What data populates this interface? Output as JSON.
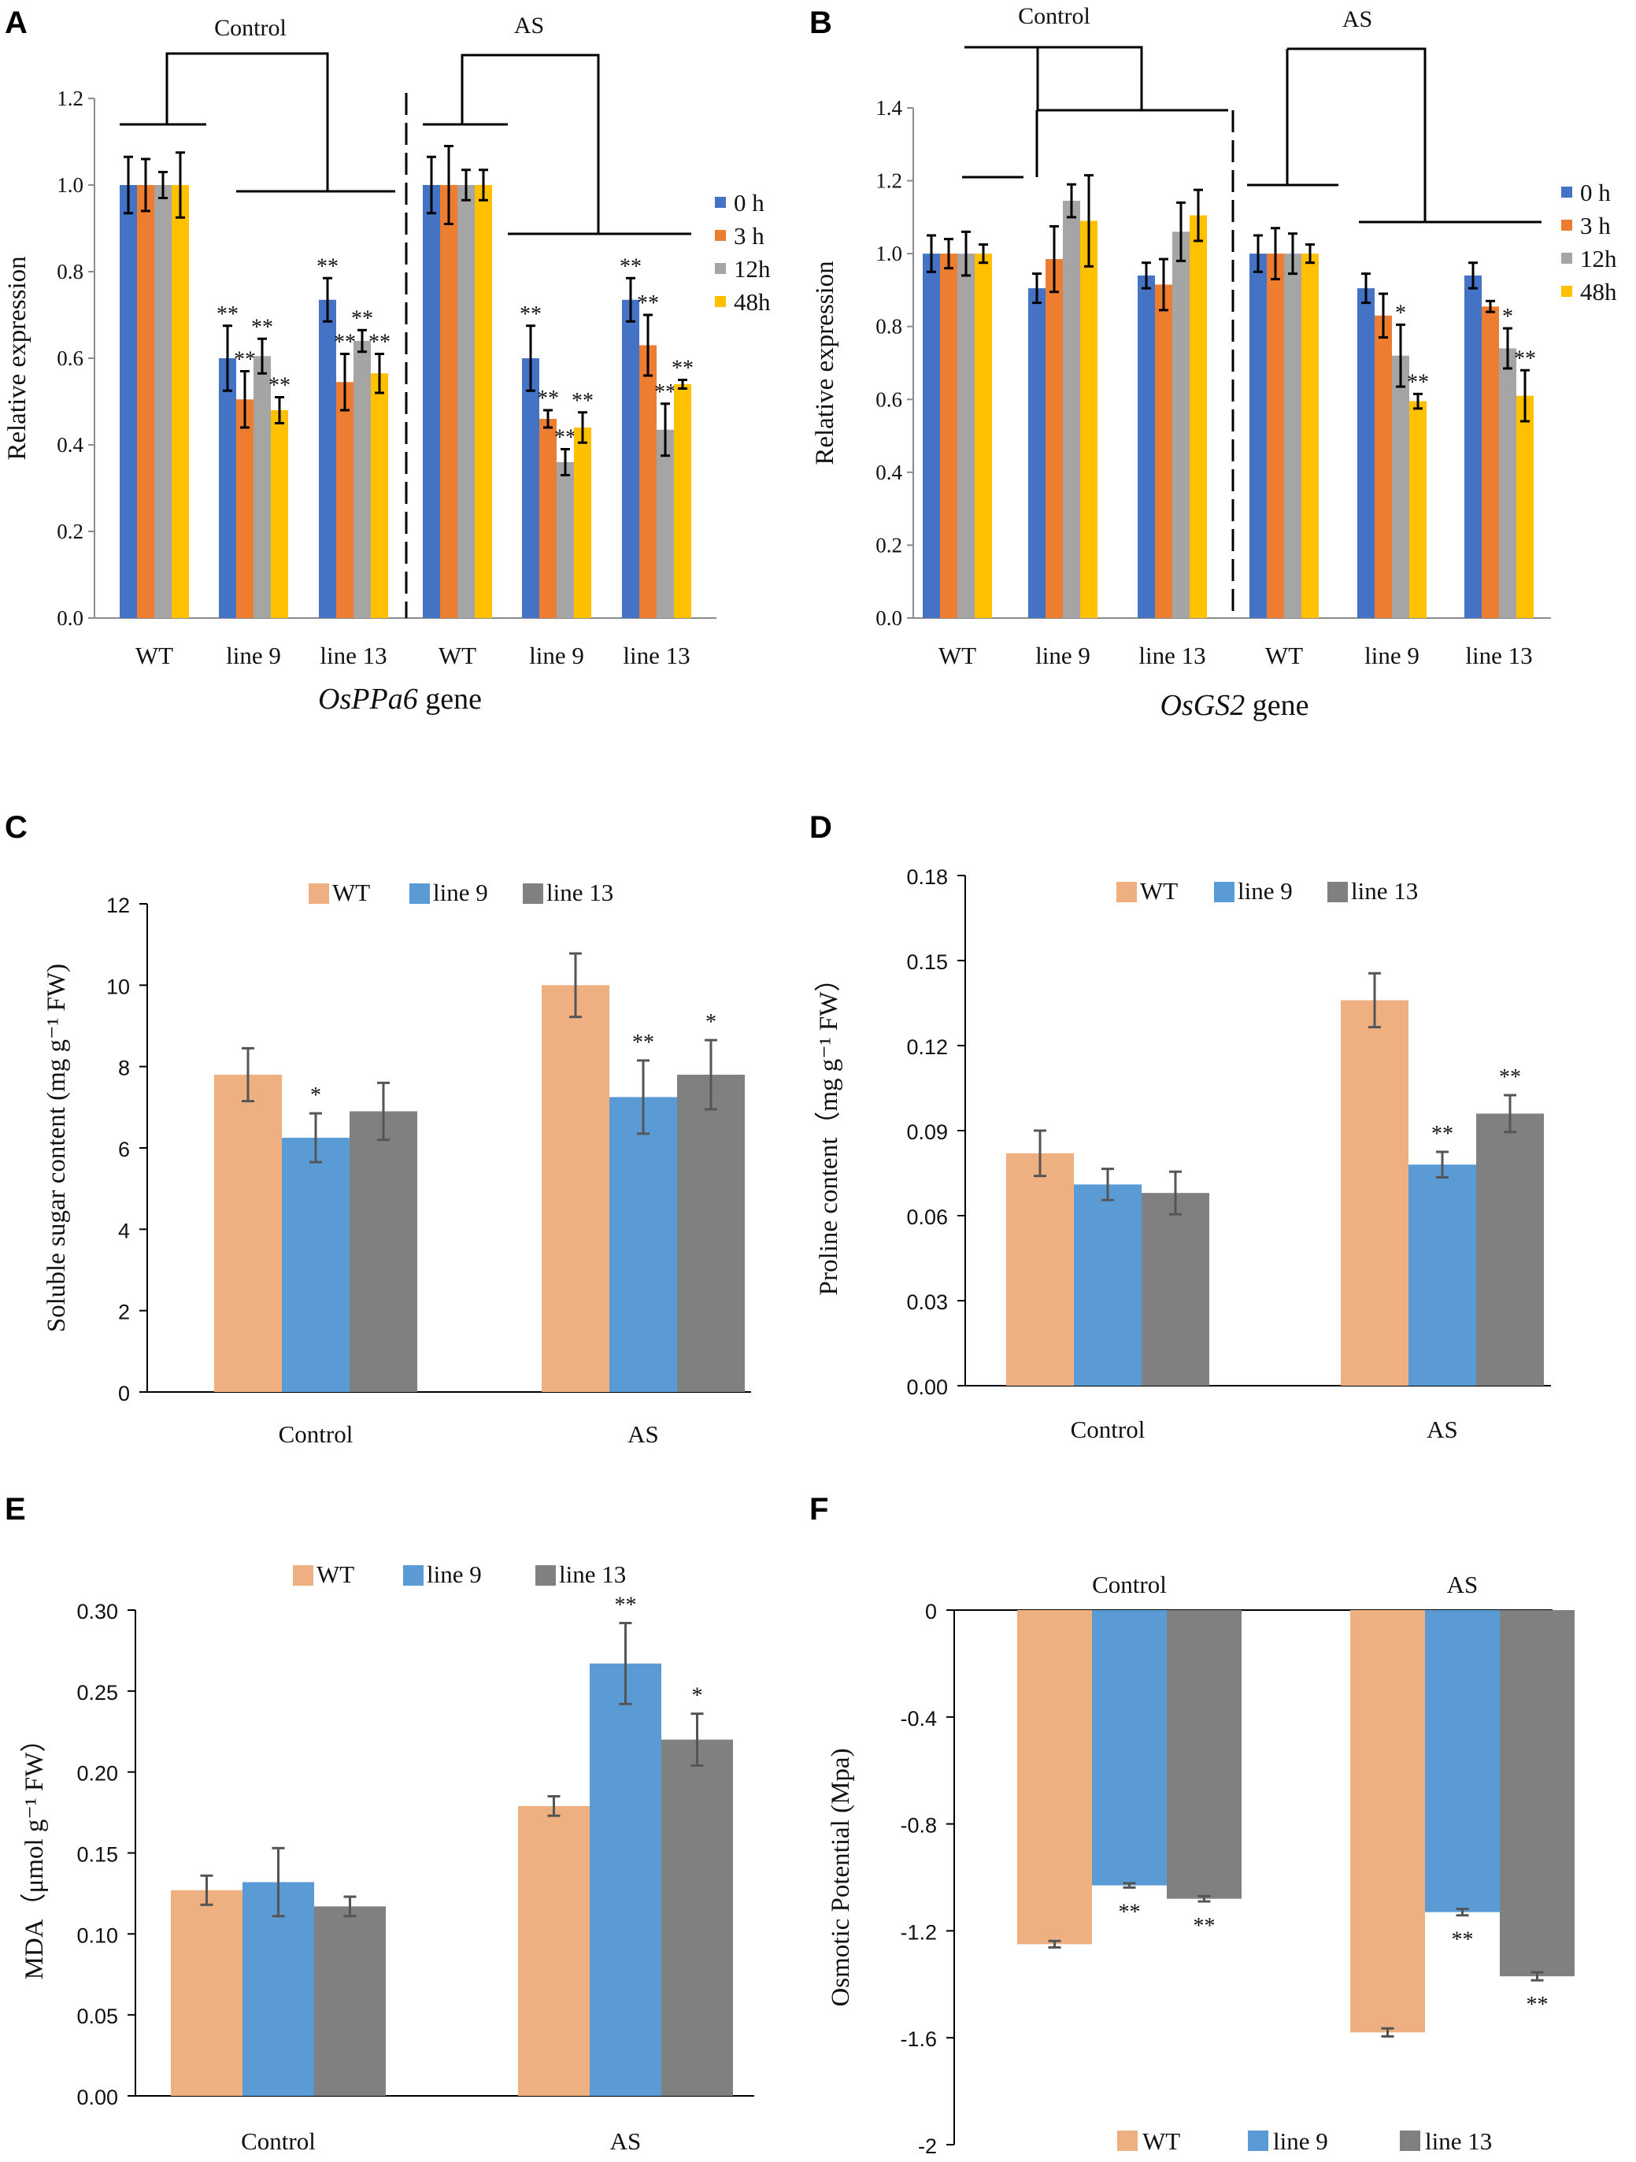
{
  "chart_data": [
    {
      "panel": "A",
      "type": "bar",
      "title": "",
      "gene_label": {
        "italic": "OsPPa6",
        "suffix": " gene"
      },
      "ylabel": "Relative expression",
      "xlabel": "",
      "ylim": [
        0,
        1.2
      ],
      "yticks": [
        0,
        0.2,
        0.4,
        0.6,
        0.8,
        1.0,
        1.2
      ],
      "ytick_labels": [
        "0.0",
        "0.2",
        "0.4",
        "0.6",
        "0.8",
        "1.0",
        "1.2"
      ],
      "categories": [
        "WT",
        "line 9",
        "line 13",
        "WT",
        "line 9",
        "line 13"
      ],
      "group_labels": [
        "Control",
        "AS"
      ],
      "legend": {
        "position": "right",
        "entries": [
          "0 h",
          "3 h",
          "12h",
          "48h"
        ]
      },
      "series": [
        {
          "name": "0 h",
          "color": "#4472c4",
          "values": [
            1.0,
            0.6,
            0.735,
            1.0,
            0.6,
            0.735
          ],
          "errors": [
            0.065,
            0.075,
            0.05,
            0.065,
            0.075,
            0.05
          ],
          "sig": [
            "",
            "**",
            "**",
            "",
            "**",
            "**"
          ]
        },
        {
          "name": "3 h",
          "color": "#ed7d31",
          "values": [
            1.0,
            0.505,
            0.545,
            1.0,
            0.46,
            0.63
          ],
          "errors": [
            0.06,
            0.065,
            0.065,
            0.09,
            0.02,
            0.07
          ],
          "sig": [
            "",
            "**",
            "**",
            "",
            "**",
            "**"
          ]
        },
        {
          "name": "12h",
          "color": "#a5a5a5",
          "values": [
            1.0,
            0.605,
            0.64,
            1.0,
            0.36,
            0.435
          ],
          "errors": [
            0.03,
            0.04,
            0.025,
            0.035,
            0.03,
            0.06
          ],
          "sig": [
            "",
            "**",
            "**",
            "",
            "**",
            "**"
          ]
        },
        {
          "name": "48h",
          "color": "#ffc000",
          "values": [
            1.0,
            0.48,
            0.565,
            1.0,
            0.44,
            0.54
          ],
          "errors": [
            0.075,
            0.03,
            0.045,
            0.035,
            0.035,
            0.01
          ],
          "sig": [
            "",
            "**",
            "**",
            "",
            "**",
            "**"
          ]
        }
      ]
    },
    {
      "panel": "B",
      "type": "bar",
      "title": "",
      "gene_label": {
        "italic": "OsGS2",
        "suffix": " gene"
      },
      "ylabel": "Relative expression",
      "xlabel": "",
      "ylim": [
        0,
        1.4
      ],
      "yticks": [
        0,
        0.2,
        0.4,
        0.6,
        0.8,
        1.0,
        1.2,
        1.4
      ],
      "ytick_labels": [
        "0.0",
        "0.2",
        "0.4",
        "0.6",
        "0.8",
        "1.0",
        "1.2",
        "1.4"
      ],
      "categories": [
        "WT",
        "line 9",
        "line 13",
        "WT",
        "line 9",
        "line 13"
      ],
      "group_labels": [
        "Control",
        "AS"
      ],
      "legend": {
        "position": "right",
        "entries": [
          "0 h",
          "3 h",
          "12h",
          "48h"
        ]
      },
      "series": [
        {
          "name": "0 h",
          "color": "#4472c4",
          "values": [
            1.0,
            0.905,
            0.94,
            1.0,
            0.905,
            0.94
          ],
          "errors": [
            0.05,
            0.04,
            0.035,
            0.05,
            0.04,
            0.035
          ],
          "sig": [
            "",
            "",
            "",
            "",
            "",
            ""
          ]
        },
        {
          "name": "3 h",
          "color": "#ed7d31",
          "values": [
            1.0,
            0.985,
            0.915,
            1.0,
            0.83,
            0.855
          ],
          "errors": [
            0.04,
            0.09,
            0.07,
            0.07,
            0.06,
            0.015
          ],
          "sig": [
            "",
            "",
            "",
            "",
            "",
            ""
          ]
        },
        {
          "name": "12h",
          "color": "#a5a5a5",
          "values": [
            1.0,
            1.145,
            1.06,
            1.0,
            0.72,
            0.74
          ],
          "errors": [
            0.06,
            0.045,
            0.08,
            0.055,
            0.085,
            0.055
          ],
          "sig": [
            "",
            "",
            "",
            "",
            "*",
            "*"
          ]
        },
        {
          "name": "48h",
          "color": "#ffc000",
          "values": [
            1.0,
            1.09,
            1.105,
            1.0,
            0.595,
            0.61
          ],
          "errors": [
            0.025,
            0.125,
            0.07,
            0.025,
            0.02,
            0.07
          ],
          "sig": [
            "",
            "",
            "",
            "",
            "**",
            "**"
          ]
        }
      ]
    },
    {
      "panel": "C",
      "type": "bar",
      "title": "",
      "ylabel": "Soluble sugar content (mg g⁻¹ FW)",
      "xlabel": "",
      "ylim": [
        0,
        12
      ],
      "yticks": [
        0,
        2,
        4,
        6,
        8,
        10,
        12
      ],
      "ytick_labels": [
        "0",
        "2",
        "4",
        "6",
        "8",
        "10",
        "12"
      ],
      "categories": [
        "Control",
        "AS"
      ],
      "legend": {
        "position": "top",
        "entries": [
          "WT",
          "line 9",
          "line 13"
        ]
      },
      "series": [
        {
          "name": "WT",
          "color": "#eeb081",
          "values": [
            7.8,
            10.0
          ],
          "errors": [
            0.65,
            0.78
          ],
          "sig": [
            "",
            ""
          ]
        },
        {
          "name": "line 9",
          "color": "#5b9bd5",
          "values": [
            6.25,
            7.25
          ],
          "errors": [
            0.6,
            0.9
          ],
          "sig": [
            "*",
            "**"
          ]
        },
        {
          "name": "line 13",
          "color": "#808080",
          "values": [
            6.9,
            7.8
          ],
          "errors": [
            0.7,
            0.85
          ],
          "sig": [
            "",
            "*"
          ]
        }
      ]
    },
    {
      "panel": "D",
      "type": "bar",
      "title": "",
      "ylabel": "Proline content（mg g⁻¹ FW）",
      "xlabel": "",
      "ylim": [
        0,
        0.18
      ],
      "yticks": [
        0,
        0.03,
        0.06,
        0.09,
        0.12,
        0.15,
        0.18
      ],
      "ytick_labels": [
        "0.00",
        "0.03",
        "0.06",
        "0.09",
        "0.12",
        "0.15",
        "0.18"
      ],
      "categories": [
        "Control",
        "AS"
      ],
      "legend": {
        "position": "top",
        "entries": [
          "WT",
          "line 9",
          "line 13"
        ]
      },
      "series": [
        {
          "name": "WT",
          "color": "#eeb081",
          "values": [
            0.082,
            0.136
          ],
          "errors": [
            0.008,
            0.0095
          ],
          "sig": [
            "",
            ""
          ]
        },
        {
          "name": "line 9",
          "color": "#5b9bd5",
          "values": [
            0.071,
            0.078
          ],
          "errors": [
            0.0055,
            0.0045
          ],
          "sig": [
            "",
            "**"
          ]
        },
        {
          "name": "line 13",
          "color": "#808080",
          "values": [
            0.068,
            0.096
          ],
          "errors": [
            0.0075,
            0.0065
          ],
          "sig": [
            "",
            "**"
          ]
        }
      ]
    },
    {
      "panel": "E",
      "type": "bar",
      "title": "",
      "ylabel": "MDA（μmol g⁻¹ FW）",
      "xlabel": "",
      "ylim": [
        0,
        0.3
      ],
      "yticks": [
        0,
        0.05,
        0.1,
        0.15,
        0.2,
        0.25,
        0.3
      ],
      "ytick_labels": [
        "0.00",
        "0.05",
        "0.10",
        "0.15",
        "0.20",
        "0.25",
        "0.30"
      ],
      "categories": [
        "Control",
        "AS"
      ],
      "legend": {
        "position": "top",
        "entries": [
          "WT",
          "line 9",
          "line 13"
        ]
      },
      "series": [
        {
          "name": "WT",
          "color": "#eeb081",
          "values": [
            0.127,
            0.179
          ],
          "errors": [
            0.009,
            0.006
          ],
          "sig": [
            "",
            ""
          ]
        },
        {
          "name": "line 9",
          "color": "#5b9bd5",
          "values": [
            0.132,
            0.267
          ],
          "errors": [
            0.021,
            0.025
          ],
          "sig": [
            "",
            "**"
          ]
        },
        {
          "name": "line 13",
          "color": "#808080",
          "values": [
            0.117,
            0.22
          ],
          "errors": [
            0.006,
            0.016
          ],
          "sig": [
            "",
            "*"
          ]
        }
      ]
    },
    {
      "panel": "F",
      "type": "bar",
      "title": "",
      "ylabel": "Osmotic Potential (Mpa)",
      "xlabel": "",
      "ylim": [
        -2,
        0
      ],
      "yticks": [
        -2,
        -1.6,
        -1.2,
        -0.8,
        -0.4,
        0
      ],
      "ytick_labels": [
        "-2",
        "-1.6",
        "-1.2",
        "-0.8",
        "-0.4",
        "0"
      ],
      "categories": [
        "Control",
        "AS"
      ],
      "category_axis_position": "top",
      "legend": {
        "position": "bottom",
        "entries": [
          "WT",
          "line 9",
          "line 13"
        ]
      },
      "series": [
        {
          "name": "WT",
          "color": "#eeb081",
          "values": [
            -1.25,
            -1.58
          ],
          "errors": [
            0.012,
            0.015
          ],
          "sig": [
            "",
            ""
          ]
        },
        {
          "name": "line 9",
          "color": "#5b9bd5",
          "values": [
            -1.03,
            -1.13
          ],
          "errors": [
            0.008,
            0.012
          ],
          "sig": [
            "**",
            "**"
          ]
        },
        {
          "name": "line 13",
          "color": "#808080",
          "values": [
            -1.08,
            -1.37
          ],
          "errors": [
            0.01,
            0.015
          ],
          "sig": [
            "**",
            "**"
          ]
        }
      ]
    }
  ]
}
